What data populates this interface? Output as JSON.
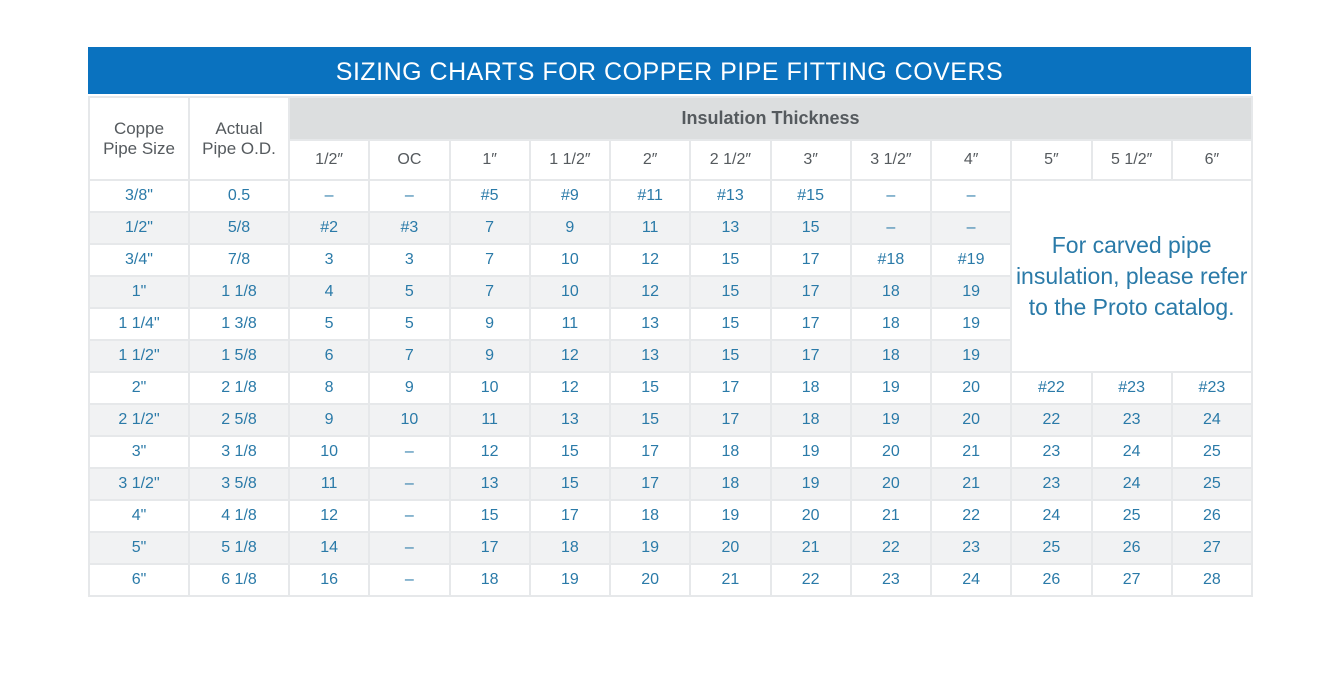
{
  "title": "SIZING CHARTS FOR COPPER PIPE FITTING COVERS",
  "headers": {
    "pipe_size": [
      "Coppe",
      "Pipe Size"
    ],
    "actual_od": [
      "Actual",
      "Pipe O.D."
    ],
    "insulation": "Insulation Thickness",
    "thickness": [
      "1/2″",
      "OC",
      "1″",
      "1 1/2″",
      "2″",
      "2 1/2″",
      "3″",
      "3 1/2″",
      "4″",
      "5″",
      "5 1/2″",
      "6″"
    ]
  },
  "note": [
    "For carved pipe",
    "insulation, please refer",
    "to the Proto catalog."
  ],
  "colors": {
    "title_bg": "#0a72bf",
    "value_text": "#2a7aa8",
    "header_bg": "#dcdedf",
    "stripe": "#f1f2f3"
  },
  "rows": [
    {
      "size": "3/8\"",
      "od": "0.5",
      "values": [
        "–",
        "–",
        "#5",
        "#9",
        "#11",
        "#13",
        "#15",
        "–",
        "–"
      ]
    },
    {
      "size": "1/2\"",
      "od": "5/8",
      "values": [
        "#2",
        "#3",
        "7",
        "9",
        "11",
        "13",
        "15",
        "–",
        "–"
      ]
    },
    {
      "size": "3/4\"",
      "od": "7/8",
      "values": [
        "3",
        "3",
        "7",
        "10",
        "12",
        "15",
        "17",
        "#18",
        "#19"
      ]
    },
    {
      "size": "1\"",
      "od": "1 1/8",
      "values": [
        "4",
        "5",
        "7",
        "10",
        "12",
        "15",
        "17",
        "18",
        "19"
      ]
    },
    {
      "size": "1 1/4\"",
      "od": "1 3/8",
      "values": [
        "5",
        "5",
        "9",
        "11",
        "13",
        "15",
        "17",
        "18",
        "19"
      ]
    },
    {
      "size": "1 1/2\"",
      "od": "1 5/8",
      "values": [
        "6",
        "7",
        "9",
        "12",
        "13",
        "15",
        "17",
        "18",
        "19"
      ]
    },
    {
      "size": "2\"",
      "od": "2 1/8",
      "values": [
        "8",
        "9",
        "10",
        "12",
        "15",
        "17",
        "18",
        "19",
        "20",
        "#22",
        "#23",
        "#23"
      ]
    },
    {
      "size": "2 1/2\"",
      "od": "2 5/8",
      "values": [
        "9",
        "10",
        "11",
        "13",
        "15",
        "17",
        "18",
        "19",
        "20",
        "22",
        "23",
        "24"
      ]
    },
    {
      "size": "3\"",
      "od": "3 1/8",
      "values": [
        "10",
        "–",
        "12",
        "15",
        "17",
        "18",
        "19",
        "20",
        "21",
        "23",
        "24",
        "25"
      ]
    },
    {
      "size": "3 1/2\"",
      "od": "3 5/8",
      "values": [
        "11",
        "–",
        "13",
        "15",
        "17",
        "18",
        "19",
        "20",
        "21",
        "23",
        "24",
        "25"
      ]
    },
    {
      "size": "4\"",
      "od": "4 1/8",
      "values": [
        "12",
        "–",
        "15",
        "17",
        "18",
        "19",
        "20",
        "21",
        "22",
        "24",
        "25",
        "26"
      ]
    },
    {
      "size": "5\"",
      "od": "5 1/8",
      "values": [
        "14",
        "–",
        "17",
        "18",
        "19",
        "20",
        "21",
        "22",
        "23",
        "25",
        "26",
        "27"
      ]
    },
    {
      "size": "6\"",
      "od": "6 1/8",
      "values": [
        "16",
        "–",
        "18",
        "19",
        "20",
        "21",
        "22",
        "23",
        "24",
        "26",
        "27",
        "28"
      ]
    }
  ]
}
